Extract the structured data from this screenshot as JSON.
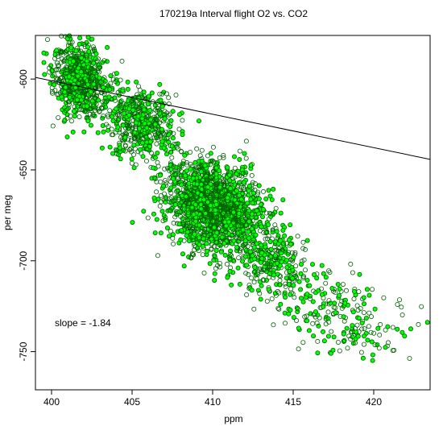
{
  "chart_data": {
    "type": "scatter",
    "title": "170219a   Interval flight O2 vs. CO2",
    "xlabel": "ppm",
    "ylabel": "per meg",
    "xlim": [
      399,
      423.5
    ],
    "ylim": [
      -771,
      -576
    ],
    "x_ticks": [
      400,
      405,
      410,
      415,
      420
    ],
    "y_ticks": [
      -600,
      -650,
      -700,
      -750
    ],
    "grid": false,
    "legend": "none",
    "annotation": "slope =  -1.84",
    "regression_line": {
      "slope": -1.84,
      "intercept": 135.05
    },
    "point_style": {
      "outline_color": "#006400",
      "fill_color": "#00ff00"
    },
    "clusters": [
      {
        "name": "",
        "center": [
          401.8,
          -600
        ],
        "spread": [
          0.8,
          10
        ],
        "count": 700
      },
      {
        "name": "",
        "center": [
          405.5,
          -625
        ],
        "spread": [
          1.1,
          10
        ],
        "count": 500
      },
      {
        "name": "",
        "center": [
          410,
          -670
        ],
        "spread": [
          1.5,
          12
        ],
        "count": 1600
      },
      {
        "name": "",
        "center": [
          413.5,
          -700
        ],
        "spread": [
          1.2,
          10
        ],
        "count": 300
      },
      {
        "name": "",
        "center": [
          418,
          -730
        ],
        "spread": [
          2.0,
          10
        ],
        "count": 220
      }
    ]
  }
}
